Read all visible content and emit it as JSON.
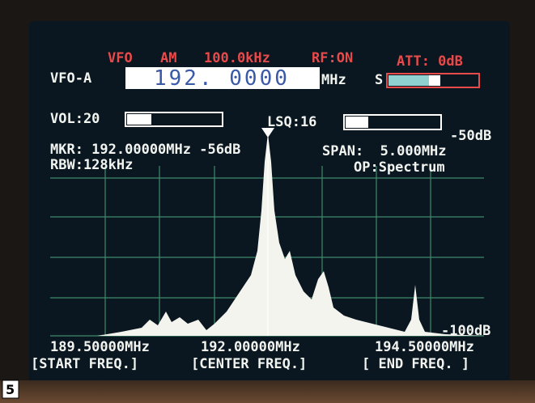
{
  "header": {
    "mode_line": [
      "VFO",
      "AM",
      "100.0kHz",
      "RF:ON",
      "ATT: 0dB"
    ],
    "vfo": "VFO-A",
    "frequency": "192. 0000",
    "unit": "MHz",
    "s_meter": "S"
  },
  "controls": {
    "volume": "VOL:20",
    "squelch": "LSQ:16"
  },
  "spectrum": {
    "top_level": "-50dB",
    "bottom_level": "-100dB",
    "marker": "MKR: 192.00000MHz -56dB",
    "span": "SPAN:  5.000MHz",
    "rbw": "RBW:128kHz",
    "op": "OP:Spectrum",
    "frequencies": [
      "189.50000MHz",
      "192.00000MHz",
      "194.50000MHz"
    ],
    "softkeys": [
      "[START FREQ.]",
      "[CENTER FREQ.]",
      "[ END FREQ. ]"
    ]
  },
  "figure_label": "5"
}
